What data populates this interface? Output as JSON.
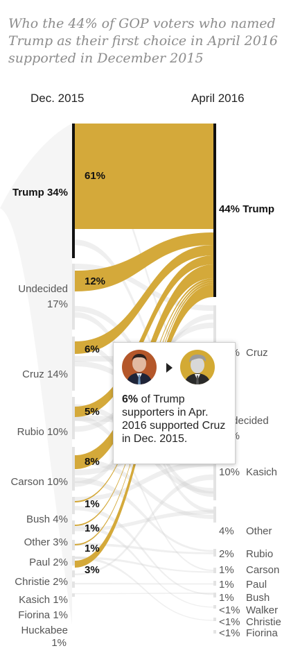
{
  "title": "Who the 44% of GOP voters who named Trump as their first choice in April 2016 supported in December 2015",
  "columns": {
    "left": "Dec. 2015",
    "right": "April 2016"
  },
  "colors": {
    "trump_gold": "#d4a93a",
    "bar": "#111111",
    "muted_node": "#e3e3e3",
    "muted_flow": "#d0d0d0",
    "label": "#555555",
    "label_strong": "#111111"
  },
  "chart_data": {
    "type": "sankey",
    "left_nodes": [
      {
        "name": "Trump",
        "pct": "34%"
      },
      {
        "name": "Undecided",
        "pct": "17%"
      },
      {
        "name": "Cruz",
        "pct": "14%"
      },
      {
        "name": "Rubio",
        "pct": "10%"
      },
      {
        "name": "Carson",
        "pct": "10%"
      },
      {
        "name": "Bush",
        "pct": "4%"
      },
      {
        "name": "Other",
        "pct": "3%"
      },
      {
        "name": "Paul",
        "pct": "2%"
      },
      {
        "name": "Christie",
        "pct": "2%"
      },
      {
        "name": "Kasich",
        "pct": "1%"
      },
      {
        "name": "Fiorina",
        "pct": "1%"
      },
      {
        "name": "Huckabee",
        "pct": "1%"
      }
    ],
    "right_nodes": [
      {
        "name": "Trump",
        "pct": "44%"
      },
      {
        "name": "Cruz",
        "pct": "23%"
      },
      {
        "name": "Undecided",
        "pct": "14%"
      },
      {
        "name": "Kasich",
        "pct": "10%"
      },
      {
        "name": "Other",
        "pct": "4%"
      },
      {
        "name": "Rubio",
        "pct": "2%"
      },
      {
        "name": "Carson",
        "pct": "1%"
      },
      {
        "name": "Paul",
        "pct": "1%"
      },
      {
        "name": "Bush",
        "pct": "1%"
      },
      {
        "name": "Walker",
        "pct": "<1%"
      },
      {
        "name": "Christie",
        "pct": "<1%"
      },
      {
        "name": "Fiorina",
        "pct": "<1%"
      }
    ],
    "trump_flows": [
      {
        "from": "Trump",
        "label": "61%"
      },
      {
        "from": "Undecided",
        "label": "12%"
      },
      {
        "from": "Cruz",
        "label": "6%"
      },
      {
        "from": "Rubio",
        "label": "5%"
      },
      {
        "from": "Carson",
        "label": "8%"
      },
      {
        "from": "Bush",
        "label": "1%"
      },
      {
        "from": "Other",
        "label": "1%"
      },
      {
        "from": "Paul",
        "label": "1%"
      },
      {
        "from": "Christie",
        "label": "3%"
      }
    ]
  },
  "tooltip": {
    "pct": "6%",
    "text": " of Trump supporters in Apr. 2016 supported Cruz in Dec. 2015.",
    "from_icon": "cruz-avatar",
    "to_icon": "trump-avatar"
  }
}
